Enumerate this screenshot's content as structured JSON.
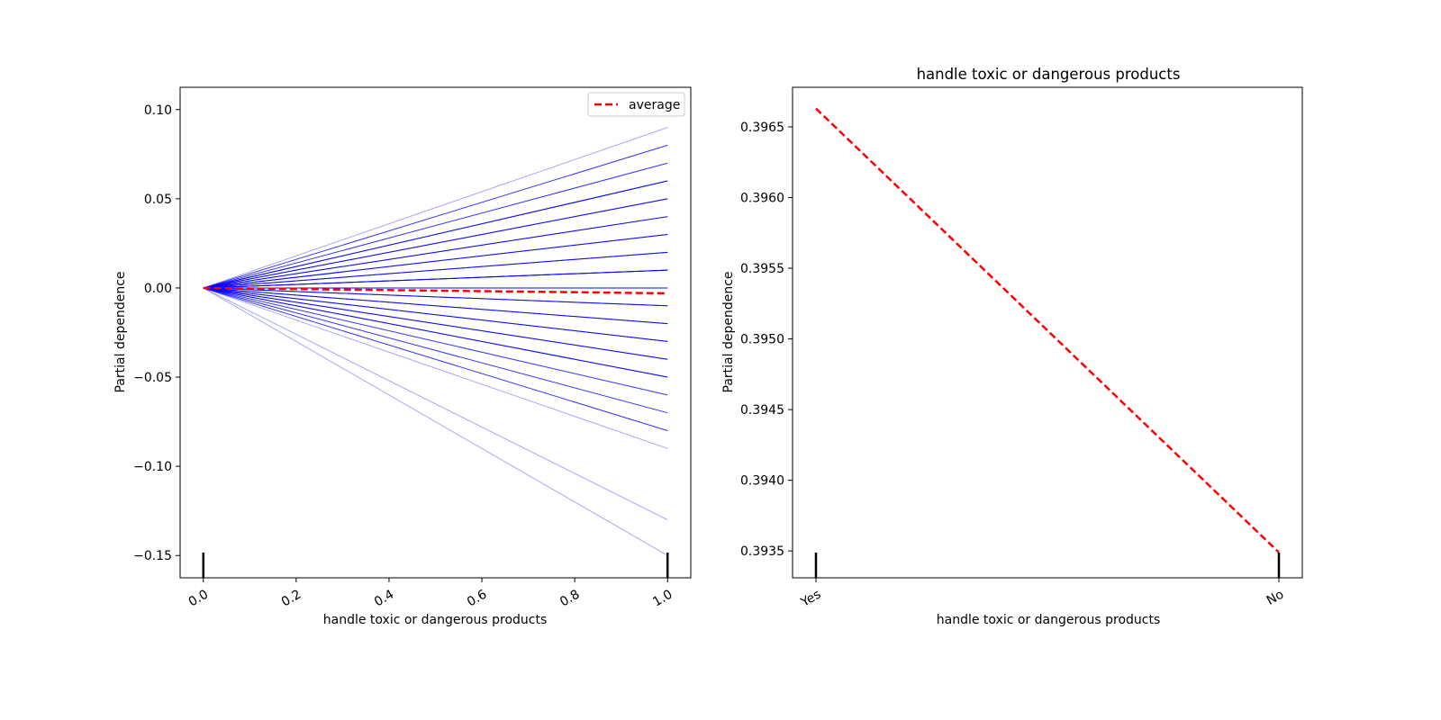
{
  "chart_data": [
    {
      "type": "line",
      "title": "",
      "xlabel": "handle toxic or dangerous products",
      "ylabel": "Partial dependence",
      "xlim": [
        -0.05,
        1.05
      ],
      "ylim": [
        -0.1625,
        0.1125
      ],
      "xticks": [
        0.0,
        0.2,
        0.4,
        0.6,
        0.8,
        1.0
      ],
      "xtick_labels": [
        "0.0",
        "0.2",
        "0.4",
        "0.6",
        "0.8",
        "1.0"
      ],
      "yticks": [
        0.1,
        0.05,
        0.0,
        -0.05,
        -0.1,
        -0.15
      ],
      "ytick_labels": [
        "0.10",
        "0.05",
        "0.00",
        "−0.05",
        "−0.10",
        "−0.15"
      ],
      "x": [
        0.0,
        1.0
      ],
      "ice_end_values": [
        0.09,
        0.08,
        0.07,
        0.06,
        0.06,
        0.05,
        0.05,
        0.04,
        0.04,
        0.03,
        0.03,
        0.02,
        0.02,
        0.01,
        0.01,
        0.01,
        0.0,
        0.0,
        -0.01,
        -0.01,
        -0.02,
        -0.02,
        -0.03,
        -0.03,
        -0.04,
        -0.04,
        -0.05,
        -0.05,
        -0.06,
        -0.07,
        -0.08,
        -0.09,
        -0.13,
        -0.15
      ],
      "ice_color": "#0000ff",
      "series": [
        {
          "name": "average",
          "x": [
            0.0,
            1.0
          ],
          "values": [
            0.0,
            -0.003
          ],
          "color": "#ff0000",
          "style": "dashed"
        }
      ],
      "rug": [
        0.0,
        1.0
      ],
      "legend": "top-right",
      "grid": false
    },
    {
      "type": "line",
      "title": "handle toxic or dangerous products",
      "xlabel": "handle toxic or dangerous products",
      "ylabel": "Partial dependence",
      "categories": [
        "Yes",
        "No"
      ],
      "ylim": [
        0.39331,
        0.39678
      ],
      "yticks": [
        0.3965,
        0.396,
        0.3955,
        0.395,
        0.3945,
        0.394,
        0.3935
      ],
      "ytick_labels": [
        "0.3965",
        "0.3960",
        "0.3955",
        "0.3950",
        "0.3945",
        "0.3940",
        "0.3935"
      ],
      "series": [
        {
          "values": [
            0.39663,
            0.39349
          ],
          "color": "#ff0000",
          "style": "dashed"
        }
      ],
      "rug": [
        "Yes",
        "No"
      ],
      "grid": false
    }
  ]
}
